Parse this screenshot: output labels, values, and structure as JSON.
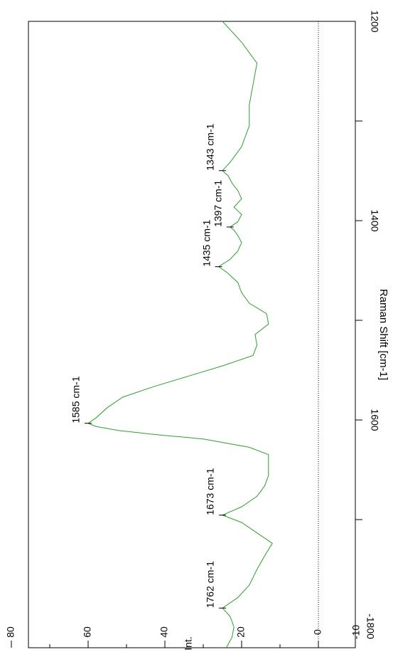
{
  "chart_data": {
    "type": "line",
    "orientation": "rotated-90-clockwise",
    "xlabel": "Raman Shift [cm-1]",
    "ylabel": "Int.",
    "xlim": [
      1800,
      1200
    ],
    "ylim": [
      -10,
      80
    ],
    "x_ticks": [
      "1200",
      "1400",
      "1600",
      "-1800"
    ],
    "y_ticks": [
      "80",
      "60",
      "40",
      "20",
      "0",
      "-10"
    ],
    "zero_line": "dotted",
    "series": [
      {
        "color": "#2ca02c",
        "x": [
          1800,
          1790,
          1780,
          1770,
          1762,
          1752,
          1740,
          1725,
          1712,
          1700,
          1690,
          1680,
          1673,
          1665,
          1655,
          1645,
          1635,
          1625,
          1615,
          1608,
          1600,
          1596,
          1592,
          1588,
          1585,
          1580,
          1570,
          1560,
          1550,
          1540,
          1530,
          1520,
          1510,
          1500,
          1490,
          1480,
          1470,
          1460,
          1450,
          1440,
          1435,
          1428,
          1420,
          1412,
          1405,
          1400,
          1397,
          1392,
          1385,
          1378,
          1370,
          1362,
          1355,
          1348,
          1343,
          1335,
          1320,
          1300,
          1280,
          1260,
          1240,
          1220,
          1200
        ],
        "y": [
          24,
          22.5,
          22,
          23,
          25,
          21,
          18,
          16,
          14,
          12,
          16,
          20,
          25,
          20,
          16,
          14,
          13,
          13,
          13,
          18,
          30,
          42,
          52,
          58,
          60,
          58,
          55,
          51,
          43,
          34,
          25,
          17,
          16,
          16.5,
          13,
          13.5,
          18,
          20,
          21,
          24,
          26,
          23,
          21,
          20,
          21,
          22,
          23,
          21,
          20,
          22,
          20,
          21,
          22.5,
          23.5,
          25,
          23,
          20,
          18,
          18,
          17,
          16,
          20,
          25
        ]
      }
    ],
    "annotations": [
      "1762 cm-1",
      "1673 cm-1",
      "1585 cm-1",
      "1435 cm-1",
      "1397 cm-1",
      "1343 cm-1"
    ]
  }
}
